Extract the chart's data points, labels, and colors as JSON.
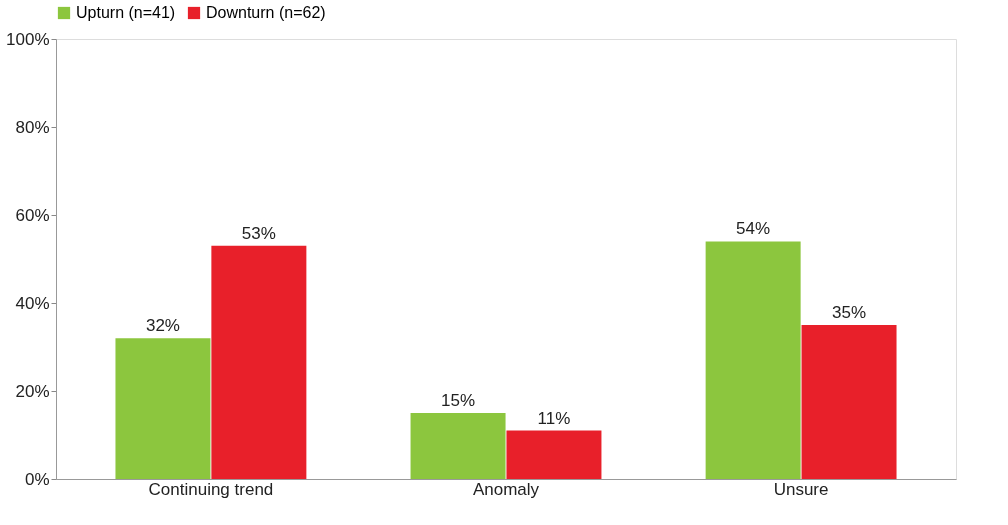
{
  "chart_data": {
    "type": "bar",
    "categories": [
      "Continuing trend",
      "Anomaly",
      "Unsure"
    ],
    "series": [
      {
        "name": "Upturn (n=41)",
        "color": "#8cc63e",
        "values": [
          32,
          15,
          54
        ],
        "value_labels": [
          "32%",
          "15%",
          "54%"
        ]
      },
      {
        "name": "Downturn (n=62)",
        "color": "#e8202a",
        "values": [
          53,
          11,
          35
        ],
        "value_labels": [
          "53%",
          "11%",
          "35%"
        ]
      }
    ],
    "ylim": [
      0,
      100
    ],
    "yticks": [
      {
        "value": 0,
        "label": "0%"
      },
      {
        "value": 20,
        "label": "20%"
      },
      {
        "value": 40,
        "label": "40%"
      },
      {
        "value": 60,
        "label": "60%"
      },
      {
        "value": 80,
        "label": "80%"
      },
      {
        "value": 100,
        "label": "100%"
      }
    ],
    "grid": false,
    "legend": "top"
  }
}
